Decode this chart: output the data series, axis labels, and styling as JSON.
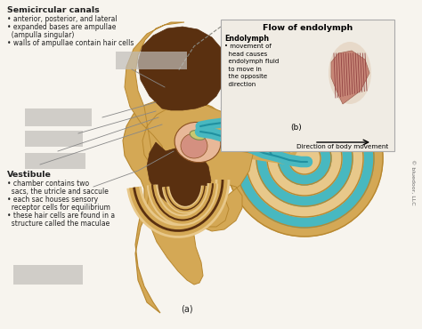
{
  "bg_color": "#f7f4ee",
  "semicircular_title": "Semicircular canals",
  "semicircular_bullets": [
    "• anterior, posterior, and lateral",
    "• expanded bases are ampullae",
    "  (ampulla singular)",
    "• walls of ampullae contain hair cells"
  ],
  "vestibule_title": "Vestibule",
  "vestibule_bullets": [
    "• chamber contains two",
    "  sacs, the utricle and saccule",
    "• each sac houses sensory",
    "  receptor cells for equilibrium",
    "• these hair cells are found in a",
    "  structure called the maculae"
  ],
  "inset_title": "Flow of endolymph",
  "inset_label": "Endolymph",
  "inset_bullets": [
    "• movement of",
    "  head causes",
    "  endolymph fluid",
    "  to move in",
    "  the opposite",
    "  direction"
  ],
  "inset_label_b": "(b)",
  "inset_direction": "Direction of body movement",
  "label_a": "(a)",
  "copyright": "© bluedoor, LLC",
  "ear_tan": "#d4a855",
  "ear_tan_light": "#e8c88a",
  "ear_tan_dark": "#b88830",
  "ear_dark_brown": "#5a3010",
  "ear_med_brown": "#8a5020",
  "ear_pink_light": "#e8b898",
  "ear_pink": "#d49080",
  "ear_skin": "#e8c8a0",
  "teal": "#48b8c0",
  "teal_dark": "#2090a0",
  "cochlea_tan": "#c8a050",
  "cochlea_tan2": "#e0c080",
  "gray_box": "#c0bdb8",
  "inset_bg": "#f0ece4",
  "inset_border": "#aaaaaa",
  "dashed_color": "#888880",
  "line_color": "#888888",
  "text_color": "#222222"
}
